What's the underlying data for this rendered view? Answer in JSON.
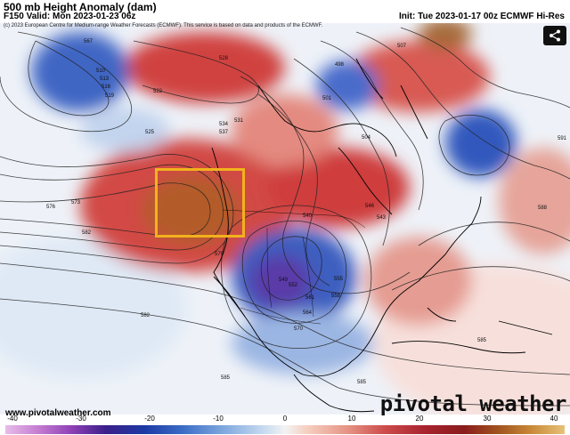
{
  "header": {
    "title": "500 mb Height Anomaly (dam)",
    "valid": "F150 Valid: Mon 2023-01-23 06z",
    "init": "Init: Tue 2023-01-17 00z ECMWF Hi-Res"
  },
  "copyright": "(c) 2023 European Centre for Medium-range Weather Forecasts (ECMWF). This service is based on data and products of the ECMWF.",
  "site_url": "www.pivotalweather.com",
  "brand": "pivotal weather",
  "icons": {
    "share": "share-icon"
  },
  "colorbar": {
    "ticks": [
      "-40",
      "-30",
      "-20",
      "-10",
      "0",
      "10",
      "20",
      "30",
      "40"
    ]
  },
  "contour_labels": [
    "567",
    "510",
    "513",
    "516",
    "519",
    "522",
    "525",
    "528",
    "531",
    "534",
    "537",
    "540",
    "543",
    "546",
    "549",
    "552",
    "555",
    "558",
    "561",
    "564",
    "570",
    "573",
    "576",
    "579",
    "582",
    "585",
    "588",
    "591",
    "498",
    "501",
    "504",
    "507"
  ],
  "colors": {
    "positive": "#c0392b",
    "negative": "#2f55b5",
    "highlight": "#f2b21c"
  }
}
